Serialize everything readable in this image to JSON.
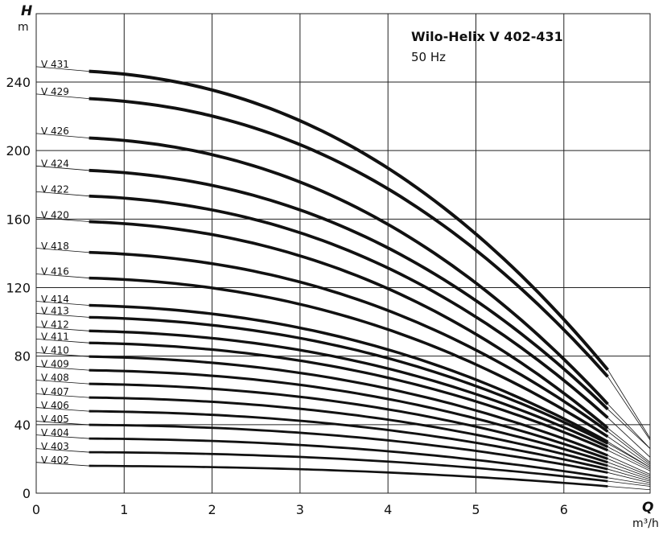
{
  "chart_data": {
    "type": "line",
    "title": "Wilo-Helix V 402-431",
    "subtitle": "50 Hz",
    "y_symbol": "H",
    "y_unit": "m",
    "x_symbol": "Q",
    "x_unit": "m³/h",
    "xlim": [
      0,
      7
    ],
    "ylim": [
      0,
      240
    ],
    "x_ticks": [
      "0",
      "1",
      "2",
      "3",
      "4",
      "5",
      "6"
    ],
    "y_ticks": [
      "0",
      "40",
      "80",
      "120",
      "160",
      "200",
      "240"
    ],
    "grid": true,
    "operating_range_q": [
      0.6,
      6.5
    ],
    "series": [
      {
        "name": "V 431",
        "h0": 247,
        "h_end": 72,
        "extension": 40
      },
      {
        "name": "V 429",
        "h0": 231,
        "h_end": 68,
        "extension": 37
      },
      {
        "name": "V 426",
        "h0": 208,
        "h_end": 52,
        "extension": 26
      },
      {
        "name": "V 424",
        "h0": 189,
        "h_end": 49,
        "extension": 23
      },
      {
        "name": "V 422",
        "h0": 174,
        "h_end": 44,
        "extension": 23
      },
      {
        "name": "V 420",
        "h0": 159,
        "h_end": 38,
        "extension": 20
      },
      {
        "name": "V 418",
        "h0": 141,
        "h_end": 36,
        "extension": 19
      },
      {
        "name": "V 416",
        "h0": 126,
        "h_end": 33,
        "extension": 17
      },
      {
        "name": "V 414",
        "h0": 110,
        "h_end": 30,
        "extension": 15
      },
      {
        "name": "V 413",
        "h0": 103,
        "h_end": 29,
        "extension": 14
      },
      {
        "name": "V 412",
        "h0": 95,
        "h_end": 27,
        "extension": 13
      },
      {
        "name": "V 411",
        "h0": 88,
        "h_end": 25,
        "extension": 12
      },
      {
        "name": "V 410",
        "h0": 80,
        "h_end": 22,
        "extension": 11
      },
      {
        "name": "V 409",
        "h0": 72,
        "h_end": 20,
        "extension": 10
      },
      {
        "name": "V 408",
        "h0": 64,
        "h_end": 18,
        "extension": 9
      },
      {
        "name": "V 407",
        "h0": 56,
        "h_end": 16,
        "extension": 8
      },
      {
        "name": "V 406",
        "h0": 48,
        "h_end": 14,
        "extension": 7
      },
      {
        "name": "V 405",
        "h0": 40,
        "h_end": 12,
        "extension": 6
      },
      {
        "name": "V 404",
        "h0": 32,
        "h_end": 9,
        "extension": 4
      },
      {
        "name": "V 403",
        "h0": 24,
        "h_end": 7,
        "extension": 3
      },
      {
        "name": "V 402",
        "h0": 16,
        "h_end": 4,
        "extension": 2
      }
    ]
  }
}
